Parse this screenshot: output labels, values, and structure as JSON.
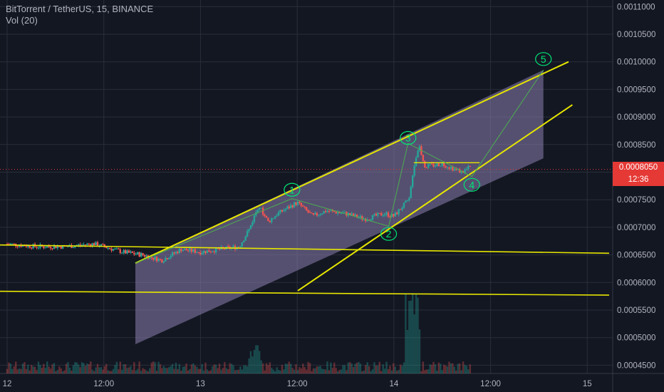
{
  "header": {
    "symbol_line": "BitTorrent / TetherUS, 15, BINANCE",
    "volume_label": "Vol (20)"
  },
  "colors": {
    "background": "#131722",
    "grid": "#2a2e39",
    "up": "#26a69a",
    "down": "#ef5350",
    "trendline": "#e6e600",
    "channel_fill": "#8c7fb0",
    "wave_line": "#4caf50",
    "wave_label": "#00e676",
    "price_tag": "#e53935"
  },
  "price_scale": {
    "current_price": "0.0008050",
    "countdown": "12:36"
  },
  "chart_data": {
    "type": "candlestick",
    "y_axis": {
      "ticks": [
        "0.0011000",
        "0.0010500",
        "0.0010000",
        "0.0009500",
        "0.0009000",
        "0.0008500",
        "0.0008000",
        "0.0007500",
        "0.0007000",
        "0.0006500",
        "0.0006000",
        "0.0005500",
        "0.0005000",
        "0.0004500"
      ],
      "ylim": [
        0.000435,
        0.001112
      ]
    },
    "x_axis": {
      "ticks": [
        "12",
        "12:00",
        "13",
        "12:00",
        "14",
        "12:00",
        "15"
      ],
      "xlim": [
        0,
        28
      ]
    },
    "price_path": [
      [
        0,
        0.00067
      ],
      [
        1.5,
        0.000665
      ],
      [
        3,
        0.000665
      ],
      [
        4.5,
        0.00067
      ],
      [
        5,
        0.000665
      ],
      [
        6,
        0.000655
      ],
      [
        7,
        0.00065
      ],
      [
        8,
        0.00064
      ],
      [
        9,
        0.00066
      ],
      [
        10,
        0.000655
      ],
      [
        11,
        0.00066
      ],
      [
        12,
        0.000665
      ],
      [
        12.5,
        0.000695
      ],
      [
        13,
        0.00074
      ],
      [
        13.5,
        0.00071
      ],
      [
        14,
        0.000725
      ],
      [
        15,
        0.000745
      ],
      [
        15.8,
        0.00072
      ],
      [
        16.5,
        0.00073
      ],
      [
        17.5,
        0.000725
      ],
      [
        18.5,
        0.000715
      ],
      [
        19.5,
        0.000725
      ],
      [
        20,
        0.00072
      ],
      [
        20.5,
        0.00074
      ],
      [
        20.8,
        0.00075
      ],
      [
        21,
        0.000805
      ],
      [
        21.3,
        0.00085
      ],
      [
        21.6,
        0.00081
      ],
      [
        22.5,
        0.000815
      ],
      [
        23.5,
        0.0008
      ],
      [
        24,
        0.00081
      ]
    ],
    "series": [
      {
        "name": "Vol (20)",
        "type": "volume"
      }
    ],
    "annotations": {
      "wave_labels": [
        {
          "text": "1",
          "x": 15.1,
          "y": 0.000768
        },
        {
          "text": "2",
          "x": 20.1,
          "y": 0.000688
        },
        {
          "text": "3",
          "x": 21.1,
          "y": 0.000862
        },
        {
          "text": "4",
          "x": 24.4,
          "y": 0.000777
        },
        {
          "text": "5",
          "x": 28.1,
          "y": 0.001005
        }
      ],
      "wave_path": [
        [
          7,
          0.000635
        ],
        [
          15.1,
          0.000752
        ],
        [
          20.1,
          0.000702
        ],
        [
          21.1,
          0.000852
        ],
        [
          24.4,
          0.000792
        ],
        [
          28.1,
          0.000985
        ]
      ],
      "channel_upper": [
        [
          7,
          0.000635
        ],
        [
          29.4,
          0.001
        ]
      ],
      "channel_lower_projection": [
        [
          15.4,
          0.000585
        ],
        [
          29.6,
          0.000922
        ]
      ],
      "support_top": [
        [
          0,
          0.000668
        ],
        [
          31.5,
          0.000653
        ]
      ],
      "support_bottom": [
        [
          0,
          0.000584
        ],
        [
          31.5,
          0.000577
        ]
      ],
      "channel_band": [
        [
          7,
          0.000635
        ],
        [
          28.1,
          0.000985
        ],
        [
          28.1,
          0.000825
        ],
        [
          7,
          0.000488
        ]
      ],
      "consolidation_box": [
        [
          21.4,
          0.000817
        ],
        [
          24.8,
          0.000817
        ]
      ]
    }
  }
}
